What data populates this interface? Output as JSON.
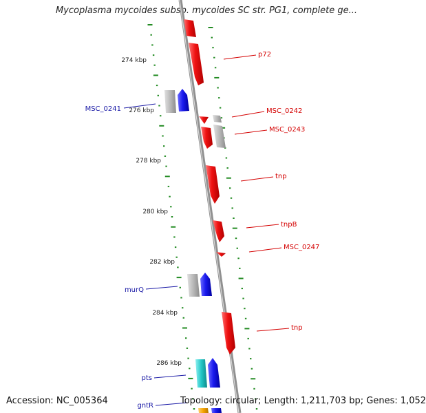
{
  "title": "Mycoplasma mycoides subsp. mycoides SC str. PG1, complete ge...",
  "footer": {
    "accession": "Accession: NC_005364",
    "summary": "Topology: circular; Length: 1,211,703 bp; Genes: 1,052"
  },
  "colors": {
    "forward_gene": "#1a1aee",
    "reverse_gene": "#ee1111",
    "other_feature": "#b8b8b8",
    "pts_feature": "#22c6c6",
    "orange_feature": "#f5a300",
    "backbone": "#909090",
    "ruler": "#228b22",
    "forward_label": "#1a1aa6",
    "reverse_label": "#d40000"
  },
  "ticks": [
    "274 kbp",
    "276 kbp",
    "278 kbp",
    "280 kbp",
    "282 kbp",
    "284 kbp",
    "286 kbp"
  ],
  "forward_genes": [
    "MSC_0241",
    "murQ",
    "pts",
    "gntR"
  ],
  "reverse_genes": [
    "p72",
    "MSC_0242",
    "MSC_0243",
    "tnp",
    "tnpB",
    "MSC_0247",
    "tnp"
  ]
}
